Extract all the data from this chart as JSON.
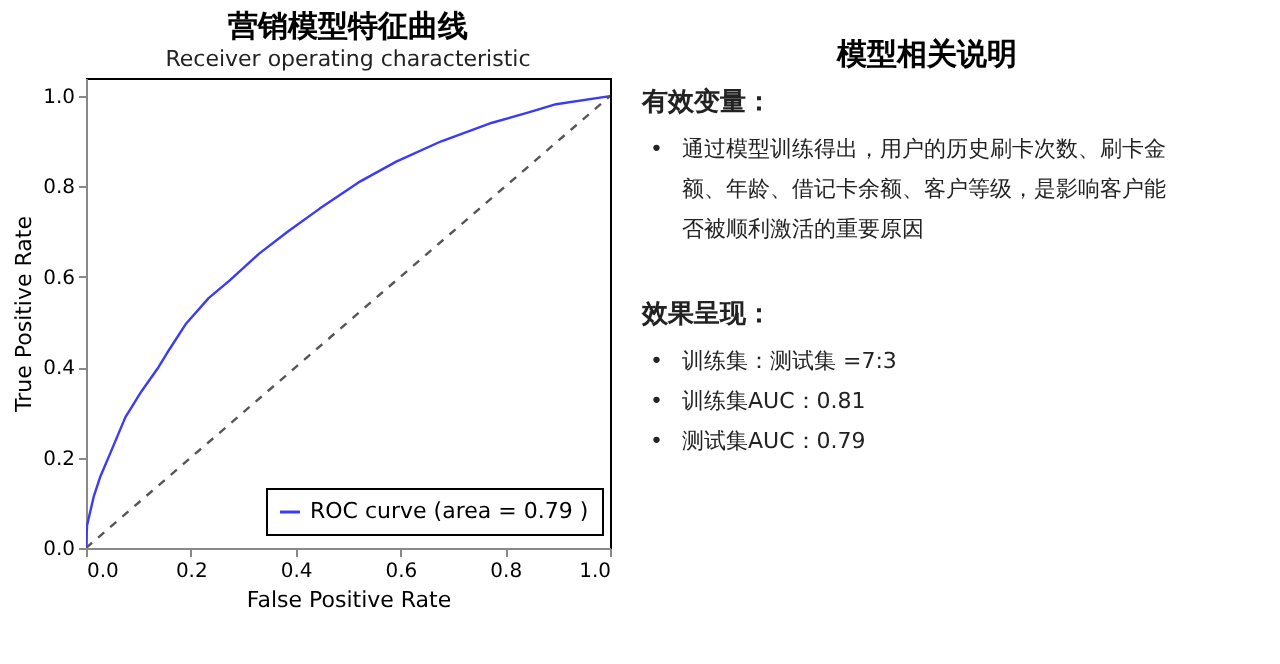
{
  "chart_data": [
    {
      "type": "line",
      "title": "营销模型特征曲线",
      "subtitle": "Receiver operating characteristic",
      "xlabel": "False Positive Rate",
      "ylabel": "True Positive Rate",
      "xlim": [
        0,
        1
      ],
      "ylim": [
        0,
        1.04
      ],
      "xticks": [
        {
          "value": 0,
          "label": "0.0"
        },
        0.2,
        0.4,
        0.6,
        0.8,
        {
          "value": 1,
          "label": "1.0"
        }
      ],
      "yticks": [
        {
          "value": 0,
          "label": "0.0"
        },
        0.2,
        0.4,
        0.6,
        0.8,
        {
          "value": 1,
          "label": "1.0"
        }
      ],
      "grid": false,
      "legend": "bottom right",
      "series": [
        {
          "name": "ROC curve (area = 0.79 )",
          "color": "#3b3bf5",
          "x": [
            0,
            0.002,
            0.015,
            0.027,
            0.045,
            0.075,
            0.106,
            0.136,
            0.155,
            0.19,
            0.234,
            0.276,
            0.331,
            0.386,
            0.446,
            0.52,
            0.592,
            0.678,
            0.775,
            0.848,
            0.897,
            1
          ],
          "values": [
            0,
            0.05,
            0.115,
            0.157,
            0.206,
            0.289,
            0.347,
            0.396,
            0.432,
            0.495,
            0.553,
            0.594,
            0.652,
            0.701,
            0.751,
            0.809,
            0.855,
            0.9,
            0.941,
            0.965,
            0.982,
            1
          ]
        },
        {
          "color": "#555555",
          "line_style": "dashed",
          "x": [
            0,
            1
          ],
          "values": [
            0,
            1
          ]
        }
      ]
    },
    {
      "type": "other",
      "title": "模型相关说明",
      "annotations": [
        "有效变量：",
        "•  通过模型训练得出，用户的历史刷卡次数、刷卡金额、年龄、借记卡余额、客户等级，是影响客户能否被顺利激活的重要原因",
        "效果呈现：",
        "•  训练集：测试集 =7:3",
        "•  训练集AUC：0.81",
        "•  测试集AUC：0.79"
      ]
    }
  ]
}
